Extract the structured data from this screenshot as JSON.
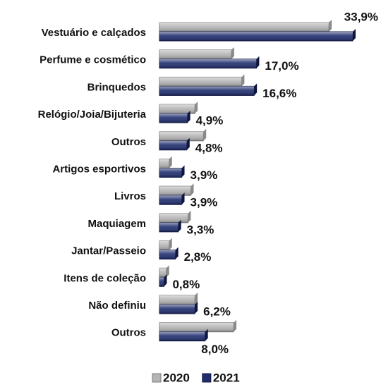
{
  "chart_data": {
    "type": "bar",
    "orientation": "horizontal",
    "categories": [
      "Vestuário e calçados",
      "Perfume e cosmético",
      "Brinquedos",
      "Relógio/Joia/Bijuteria",
      "Outros",
      "Artigos esportivos",
      "Livros",
      "Maquiagem",
      "Jantar/Passeio",
      "Itens de coleção",
      "Não definiu",
      "Outros"
    ],
    "series": [
      {
        "name": "2020",
        "color": "#b4b4b4",
        "values": [
          29.7,
          12.6,
          14.4,
          6.2,
          7.7,
          1.7,
          5.5,
          5.0,
          1.7,
          1.2,
          6.2,
          13.0
        ]
      },
      {
        "name": "2021",
        "color": "#1f2d6e",
        "values": [
          33.9,
          17.0,
          16.6,
          4.9,
          4.8,
          3.9,
          3.9,
          3.3,
          2.8,
          0.8,
          6.2,
          8.0
        ],
        "value_labels": [
          "33,9%",
          "17,0%",
          "16,6%",
          "4,9%",
          "4,8%",
          "3,9%",
          "3,9%",
          "3,3%",
          "2,8%",
          "0,8%",
          "6,2%",
          "8,0%"
        ]
      }
    ],
    "legend": "bottom"
  }
}
